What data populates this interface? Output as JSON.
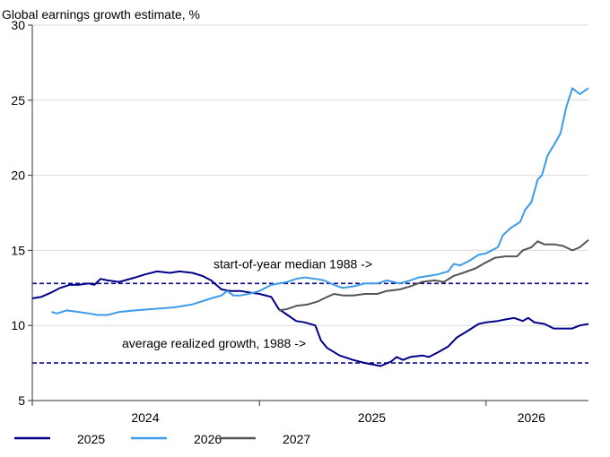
{
  "chart_data": {
    "type": "line",
    "title": "Global earnings growth estimate, %",
    "ylim": [
      5,
      30
    ],
    "y_ticks": [
      5,
      10,
      15,
      20,
      25,
      30
    ],
    "x_range": [
      "2024-01-01",
      "2026-06-15"
    ],
    "x_boundaries": [
      "2024-01-01",
      "2025-01-01",
      "2026-01-01"
    ],
    "x_tick_labels": [
      {
        "label": "2024",
        "at": "2024-07-01"
      },
      {
        "label": "2025",
        "at": "2025-07-01"
      },
      {
        "label": "2026",
        "at": "2026-03-15"
      }
    ],
    "grid": "horizontal",
    "legend_position": "bottom-left",
    "reference_lines": [
      {
        "label": "start-of-year median 1988 ->",
        "value": 12.8,
        "color": "#0a0a8c"
      },
      {
        "label": "average realized growth, 1988 ->",
        "value": 7.5,
        "color": "#0a0a8c"
      }
    ],
    "series": [
      {
        "name": "2025",
        "color": "#00008b",
        "points": [
          [
            "2024-01-01",
            11.8
          ],
          [
            "2024-01-15",
            11.9
          ],
          [
            "2024-02-01",
            12.2
          ],
          [
            "2024-02-15",
            12.5
          ],
          [
            "2024-03-01",
            12.7
          ],
          [
            "2024-03-15",
            12.7
          ],
          [
            "2024-04-01",
            12.8
          ],
          [
            "2024-04-10",
            12.7
          ],
          [
            "2024-04-20",
            13.1
          ],
          [
            "2024-05-01",
            13.0
          ],
          [
            "2024-05-20",
            12.9
          ],
          [
            "2024-06-15",
            13.2
          ],
          [
            "2024-07-01",
            13.4
          ],
          [
            "2024-07-20",
            13.6
          ],
          [
            "2024-08-10",
            13.5
          ],
          [
            "2024-08-25",
            13.6
          ],
          [
            "2024-09-15",
            13.5
          ],
          [
            "2024-10-01",
            13.3
          ],
          [
            "2024-10-15",
            13.0
          ],
          [
            "2024-11-01",
            12.4
          ],
          [
            "2024-11-15",
            12.3
          ],
          [
            "2024-12-01",
            12.3
          ],
          [
            "2024-12-15",
            12.2
          ],
          [
            "2025-01-01",
            12.1
          ],
          [
            "2025-01-20",
            11.9
          ],
          [
            "2025-02-01",
            11.1
          ],
          [
            "2025-02-15",
            10.7
          ],
          [
            "2025-03-01",
            10.3
          ],
          [
            "2025-03-15",
            10.2
          ],
          [
            "2025-04-01",
            10.0
          ],
          [
            "2025-04-10",
            9.0
          ],
          [
            "2025-04-20",
            8.5
          ],
          [
            "2025-05-10",
            8.0
          ],
          [
            "2025-06-01",
            7.7
          ],
          [
            "2025-06-20",
            7.5
          ],
          [
            "2025-07-15",
            7.3
          ],
          [
            "2025-08-01",
            7.6
          ],
          [
            "2025-08-10",
            7.9
          ],
          [
            "2025-08-20",
            7.7
          ],
          [
            "2025-09-01",
            7.9
          ],
          [
            "2025-09-20",
            8.0
          ],
          [
            "2025-10-01",
            7.9
          ],
          [
            "2025-10-15",
            8.2
          ],
          [
            "2025-11-01",
            8.6
          ],
          [
            "2025-11-15",
            9.2
          ],
          [
            "2025-12-01",
            9.6
          ],
          [
            "2025-12-20",
            10.1
          ],
          [
            "2026-01-01",
            10.2
          ],
          [
            "2026-01-20",
            10.3
          ],
          [
            "2026-02-01",
            10.4
          ],
          [
            "2026-02-15",
            10.5
          ],
          [
            "2026-03-01",
            10.3
          ],
          [
            "2026-03-10",
            10.5
          ],
          [
            "2026-03-20",
            10.2
          ],
          [
            "2026-04-05",
            10.1
          ],
          [
            "2026-04-20",
            9.8
          ],
          [
            "2026-05-01",
            9.8
          ],
          [
            "2026-05-20",
            9.8
          ],
          [
            "2026-06-01",
            10.0
          ],
          [
            "2026-06-15",
            10.1
          ]
        ]
      },
      {
        "name": "2026",
        "color": "#3d9be9",
        "points": [
          [
            "2024-02-01",
            10.9
          ],
          [
            "2024-02-10",
            10.8
          ],
          [
            "2024-02-25",
            11.0
          ],
          [
            "2024-03-15",
            10.9
          ],
          [
            "2024-04-01",
            10.8
          ],
          [
            "2024-04-15",
            10.7
          ],
          [
            "2024-05-01",
            10.7
          ],
          [
            "2024-05-20",
            10.9
          ],
          [
            "2024-06-15",
            11.0
          ],
          [
            "2024-07-15",
            11.1
          ],
          [
            "2024-08-15",
            11.2
          ],
          [
            "2024-09-15",
            11.4
          ],
          [
            "2024-10-15",
            11.8
          ],
          [
            "2024-11-01",
            12.0
          ],
          [
            "2024-11-10",
            12.3
          ],
          [
            "2024-11-20",
            12.0
          ],
          [
            "2024-12-01",
            12.0
          ],
          [
            "2024-12-15",
            12.1
          ],
          [
            "2025-01-01",
            12.3
          ],
          [
            "2025-01-20",
            12.7
          ],
          [
            "2025-02-15",
            12.9
          ],
          [
            "2025-03-01",
            13.1
          ],
          [
            "2025-03-15",
            13.2
          ],
          [
            "2025-04-01",
            13.1
          ],
          [
            "2025-04-15",
            13.0
          ],
          [
            "2025-05-01",
            12.7
          ],
          [
            "2025-05-15",
            12.5
          ],
          [
            "2025-06-01",
            12.6
          ],
          [
            "2025-06-20",
            12.8
          ],
          [
            "2025-07-10",
            12.8
          ],
          [
            "2025-07-25",
            13.0
          ],
          [
            "2025-08-15",
            12.8
          ],
          [
            "2025-09-01",
            13.0
          ],
          [
            "2025-09-15",
            13.2
          ],
          [
            "2025-10-01",
            13.3
          ],
          [
            "2025-10-15",
            13.4
          ],
          [
            "2025-11-01",
            13.6
          ],
          [
            "2025-11-10",
            14.1
          ],
          [
            "2025-11-20",
            14.0
          ],
          [
            "2025-12-05",
            14.3
          ],
          [
            "2025-12-20",
            14.7
          ],
          [
            "2026-01-01",
            14.8
          ],
          [
            "2026-01-10",
            15.0
          ],
          [
            "2026-01-20",
            15.2
          ],
          [
            "2026-01-28",
            16.0
          ],
          [
            "2026-02-10",
            16.5
          ],
          [
            "2026-02-25",
            16.9
          ],
          [
            "2026-03-05",
            17.7
          ],
          [
            "2026-03-15",
            18.2
          ],
          [
            "2026-03-25",
            19.7
          ],
          [
            "2026-04-01",
            20.0
          ],
          [
            "2026-04-10",
            21.3
          ],
          [
            "2026-04-20",
            22.0
          ],
          [
            "2026-05-01",
            22.8
          ],
          [
            "2026-05-10",
            24.5
          ],
          [
            "2026-05-20",
            25.8
          ],
          [
            "2026-06-01",
            25.4
          ],
          [
            "2026-06-15",
            25.8
          ]
        ]
      },
      {
        "name": "2027",
        "color": "#555555",
        "points": [
          [
            "2025-02-01",
            11.0
          ],
          [
            "2025-02-15",
            11.1
          ],
          [
            "2025-03-01",
            11.3
          ],
          [
            "2025-03-20",
            11.4
          ],
          [
            "2025-04-05",
            11.6
          ],
          [
            "2025-04-20",
            11.9
          ],
          [
            "2025-05-01",
            12.1
          ],
          [
            "2025-05-15",
            12.0
          ],
          [
            "2025-06-01",
            12.0
          ],
          [
            "2025-06-20",
            12.1
          ],
          [
            "2025-07-10",
            12.1
          ],
          [
            "2025-07-25",
            12.3
          ],
          [
            "2025-08-15",
            12.4
          ],
          [
            "2025-09-01",
            12.6
          ],
          [
            "2025-09-20",
            12.9
          ],
          [
            "2025-10-10",
            13.0
          ],
          [
            "2025-10-25",
            12.9
          ],
          [
            "2025-11-10",
            13.3
          ],
          [
            "2025-11-25",
            13.5
          ],
          [
            "2025-12-15",
            13.8
          ],
          [
            "2026-01-01",
            14.2
          ],
          [
            "2026-01-15",
            14.5
          ],
          [
            "2026-02-01",
            14.6
          ],
          [
            "2026-02-20",
            14.6
          ],
          [
            "2026-03-01",
            15.0
          ],
          [
            "2026-03-15",
            15.2
          ],
          [
            "2026-03-25",
            15.6
          ],
          [
            "2026-04-05",
            15.4
          ],
          [
            "2026-04-20",
            15.4
          ],
          [
            "2026-05-05",
            15.3
          ],
          [
            "2026-05-20",
            15.0
          ],
          [
            "2026-06-01",
            15.2
          ],
          [
            "2026-06-15",
            15.7
          ]
        ]
      }
    ]
  }
}
